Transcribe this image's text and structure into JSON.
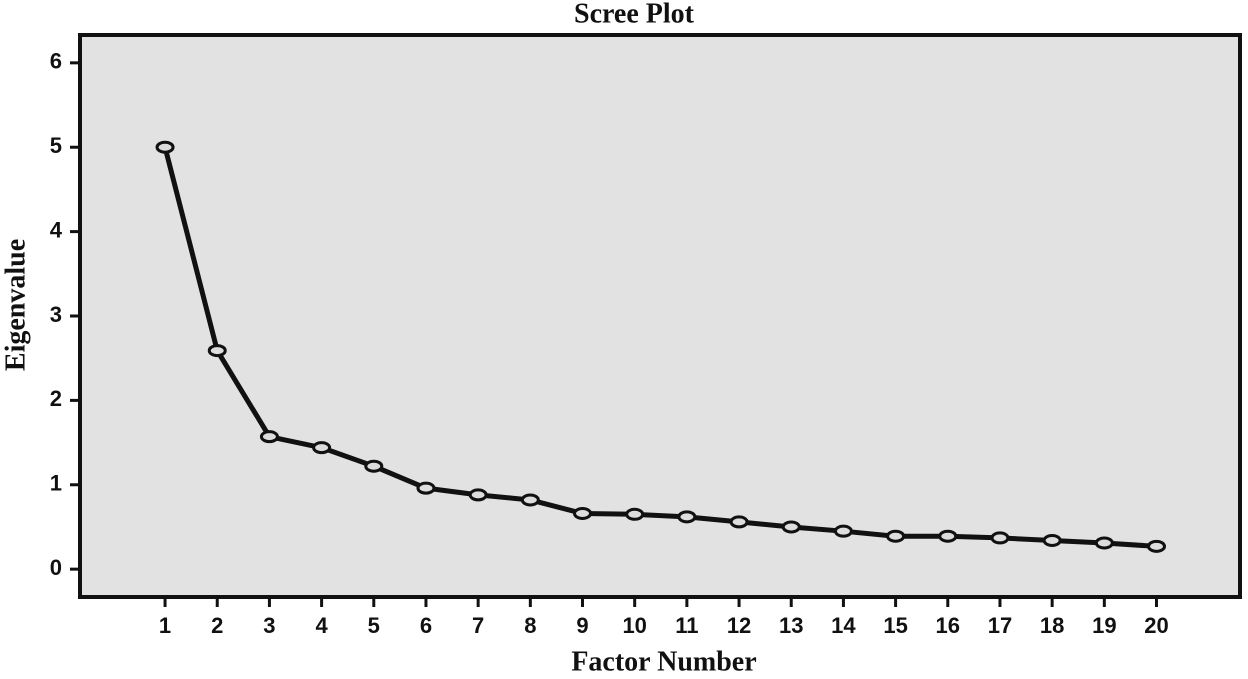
{
  "chart_data": {
    "type": "line",
    "title": "Scree Plot",
    "x_label": "Factor Number",
    "y_label": "Eigenvalue",
    "x": [
      1,
      2,
      3,
      4,
      5,
      6,
      7,
      8,
      9,
      10,
      11,
      12,
      13,
      14,
      15,
      16,
      17,
      18,
      19,
      20
    ],
    "series": [
      {
        "color": "#111111",
        "values": [
          5.0,
          2.59,
          1.57,
          1.44,
          1.22,
          0.96,
          0.88,
          0.82,
          0.66,
          0.65,
          0.62,
          0.56,
          0.5,
          0.45,
          0.39,
          0.39,
          0.37,
          0.34,
          0.31,
          0.27
        ]
      }
    ],
    "xlim": [
      -0.63,
      21.6
    ],
    "ylim": [
      -0.33,
      6.33
    ],
    "xticks": [
      1,
      2,
      3,
      4,
      5,
      6,
      7,
      8,
      9,
      10,
      11,
      12,
      13,
      14,
      15,
      16,
      17,
      18,
      19,
      20
    ],
    "yticks": [
      0,
      1,
      2,
      3,
      4,
      5,
      6
    ],
    "grid": false,
    "background": "#e2e2e2"
  }
}
